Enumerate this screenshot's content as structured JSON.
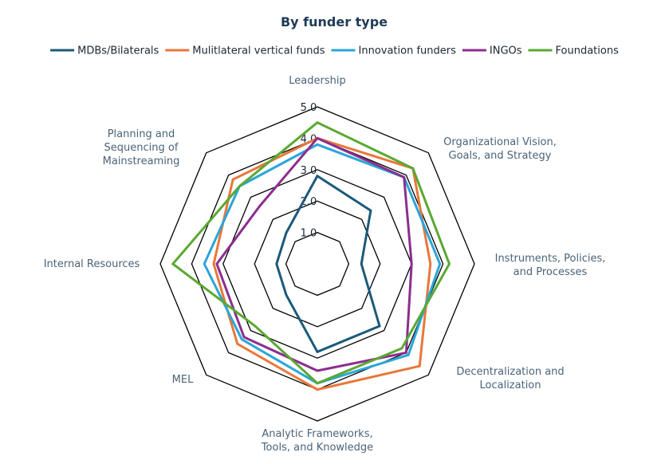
{
  "chart_data": {
    "type": "radar",
    "title": "By funder type",
    "legend_position": "top",
    "axes": [
      "Leadership",
      "Organizational Vision, Goals, and Strategy",
      "Instruments, Policies, and Processes",
      "Decentralization and Localization",
      "Analytic Frameworks, Tools, and Knowledge",
      "MEL",
      "Internal Resources",
      "Planning and Sequencing of Mainstreaming"
    ],
    "axis_label_lines": [
      [
        "Leadership"
      ],
      [
        "Organizational Vision,",
        "Goals, and Strategy"
      ],
      [
        "Instruments, Policies,",
        "and Processes"
      ],
      [
        "Decentralization and",
        "Localization"
      ],
      [
        "Analytic Frameworks,",
        "Tools, and Knowledge"
      ],
      [
        "MEL"
      ],
      [
        "Internal Resources"
      ],
      [
        "Planning and",
        "Sequencing of",
        "Mainstreaming"
      ]
    ],
    "rlim": [
      0,
      5
    ],
    "ticks": [
      1.0,
      2.0,
      3.0,
      4.0,
      5.0
    ],
    "tick_labels": [
      "1.0",
      "2.0",
      "3.0",
      "4.0",
      "5.0"
    ],
    "series": [
      {
        "name": "MDBs/Bilaterals",
        "color": "#1c5a7a",
        "values": [
          2.8,
          2.4,
          1.4,
          2.8,
          2.8,
          1.4,
          1.3,
          1.4
        ]
      },
      {
        "name": "Mulitlateral vertical funds",
        "color": "#e8773a",
        "values": [
          4.0,
          4.3,
          3.6,
          4.6,
          4.0,
          3.6,
          3.3,
          3.8
        ]
      },
      {
        "name": "Innovation funders",
        "color": "#2aa6d8",
        "values": [
          3.8,
          3.9,
          3.9,
          4.1,
          3.8,
          3.4,
          3.6,
          3.5
        ]
      },
      {
        "name": "INGOs",
        "color": "#8b2e8f",
        "values": [
          4.0,
          3.9,
          3.0,
          4.0,
          3.4,
          3.3,
          3.2,
          2.6
        ]
      },
      {
        "name": "Foundations",
        "color": "#5aa832",
        "values": [
          4.5,
          4.3,
          4.2,
          3.8,
          3.8,
          2.8,
          4.6,
          3.5
        ]
      }
    ]
  }
}
